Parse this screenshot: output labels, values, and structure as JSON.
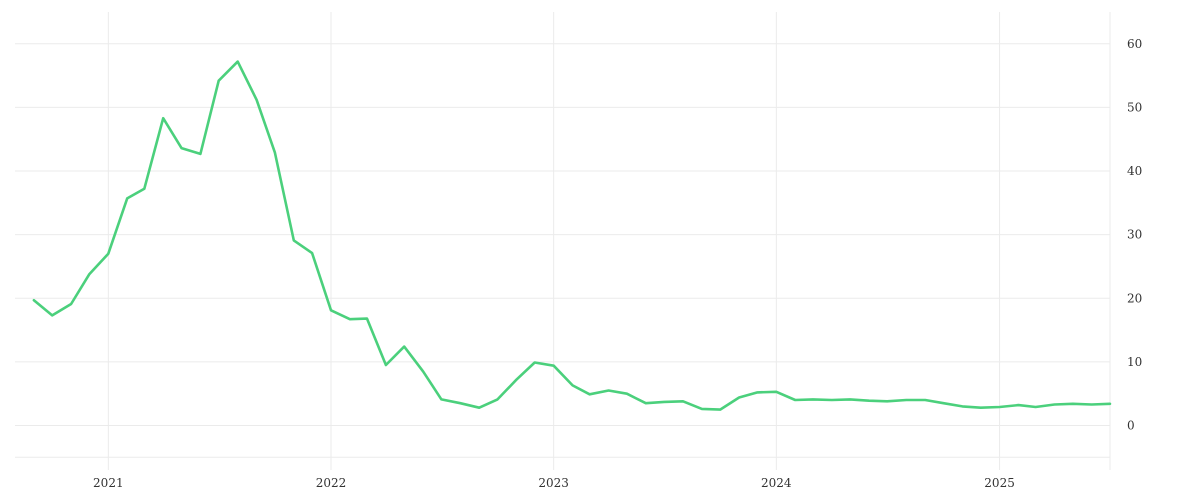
{
  "chart_data": {
    "type": "line",
    "title": "",
    "xlabel": "",
    "ylabel": "",
    "grid": true,
    "y_axis_side": "right",
    "line_color": "#4bd07c",
    "grid_color": "#ebebeb",
    "ylim": [
      -7,
      65
    ],
    "xlim": [
      "2020-08-01",
      "2025-07-01"
    ],
    "x_ticks": [
      {
        "label": "2021",
        "date": "2021-01-01"
      },
      {
        "label": "2022",
        "date": "2022-01-01"
      },
      {
        "label": "2023",
        "date": "2023-01-01"
      },
      {
        "label": "2024",
        "date": "2024-01-01"
      },
      {
        "label": "2025",
        "date": "2025-01-01"
      }
    ],
    "y_ticks": [
      0,
      10,
      20,
      30,
      40,
      50,
      60
    ],
    "series": [
      {
        "x": [
          "2020-09",
          "2020-10",
          "2020-11",
          "2020-12",
          "2021-01",
          "2021-02",
          "2021-03",
          "2021-04",
          "2021-05",
          "2021-06",
          "2021-07",
          "2021-08",
          "2021-09",
          "2021-10",
          "2021-11",
          "2021-12",
          "2022-01",
          "2022-02",
          "2022-03",
          "2022-04",
          "2022-05",
          "2022-06",
          "2022-07",
          "2022-08",
          "2022-09",
          "2022-10",
          "2022-11",
          "2022-12",
          "2023-01",
          "2023-02",
          "2023-03",
          "2023-04",
          "2023-05",
          "2023-06",
          "2023-07",
          "2023-08",
          "2023-09",
          "2023-10",
          "2023-11",
          "2023-12",
          "2024-01",
          "2024-02",
          "2024-03",
          "2024-04",
          "2024-05",
          "2024-06",
          "2024-07",
          "2024-08",
          "2024-09",
          "2024-10",
          "2024-11",
          "2024-12",
          "2025-01",
          "2025-02",
          "2025-03",
          "2025-04",
          "2025-05",
          "2025-06",
          "2025-07"
        ],
        "values": [
          19.7,
          17.3,
          19.1,
          23.8,
          27.0,
          35.7,
          37.2,
          48.3,
          43.6,
          42.7,
          54.2,
          57.2,
          51.2,
          42.9,
          29.1,
          27.1,
          18.1,
          16.7,
          16.8,
          9.5,
          12.4,
          8.5,
          4.1,
          3.5,
          2.8,
          4.1,
          7.2,
          9.9,
          9.4,
          6.3,
          4.9,
          5.5,
          5.0,
          3.5,
          3.7,
          3.8,
          2.6,
          2.5,
          4.4,
          5.2,
          5.3,
          4.0,
          4.1,
          4.0,
          4.1,
          3.9,
          3.8,
          4.0,
          4.0,
          3.5,
          3.0,
          2.8,
          2.9,
          3.2,
          2.9,
          3.3,
          3.4,
          3.3,
          3.4
        ]
      }
    ]
  }
}
